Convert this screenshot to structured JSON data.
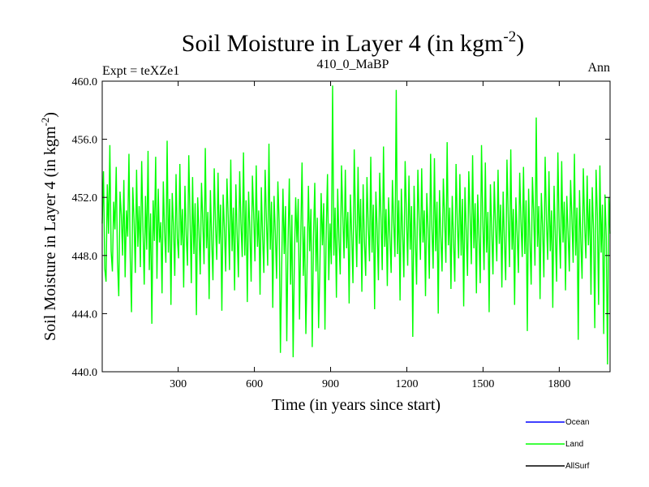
{
  "chart_data": {
    "type": "line",
    "title": "Soil Moisture in Layer 4 (in kgm",
    "title_sup": "-2",
    "title_end": ")",
    "subtitle_left": "Expt = teXZe1",
    "subtitle_center": "410_0_MaBP",
    "subtitle_right": "Ann",
    "xlabel": "Time (in years since start)",
    "ylabel": "Soil Moisture in Layer 4 (in kgm",
    "ylabel_sup": "-2",
    "ylabel_end": ")",
    "xlim": [
      1,
      2000
    ],
    "ylim": [
      440,
      460
    ],
    "xticks": [
      300,
      600,
      900,
      1200,
      1500,
      1800
    ],
    "xtick_labels": [
      "300",
      "600",
      "900",
      "1200",
      "1500",
      "1800"
    ],
    "yticks": [
      440,
      444,
      448,
      452,
      456,
      460
    ],
    "ytick_labels": [
      "440.0",
      "444.0",
      "448.0",
      "452.0",
      "456.0",
      "460.0"
    ],
    "legend": [
      {
        "name": "Ocean",
        "color": "#0000ff"
      },
      {
        "name": "Land",
        "color": "#00ff00"
      },
      {
        "name": "AllSurf",
        "color": "#000000"
      }
    ],
    "series": [
      {
        "name": "Land",
        "color": "#00ff00",
        "x_start": 1,
        "x_step": 5,
        "values": [
          450.2,
          453.8,
          447.1,
          446.2,
          452.9,
          449.5,
          455.6,
          448.3,
          446.9,
          451.7,
          449.8,
          454.1,
          447.6,
          445.2,
          452.4,
          450.8,
          448.0,
          453.2,
          446.5,
          451.1,
          449.3,
          455.0,
          447.9,
          444.1,
          452.7,
          450.5,
          446.8,
          453.9,
          448.6,
          451.4,
          447.2,
          454.5,
          449.9,
          446.0,
          452.1,
          448.4,
          455.2,
          447.0,
          450.9,
          443.3,
          451.8,
          449.0,
          454.8,
          446.4,
          452.6,
          448.9,
          450.3,
          445.4,
          453.1,
          449.6,
          447.5,
          455.9,
          448.2,
          451.9,
          444.6,
          452.3,
          450.0,
          446.6,
          453.6,
          449.2,
          447.8,
          454.3,
          448.7,
          451.2,
          445.8,
          452.8,
          449.4,
          447.3,
          454.9,
          450.6,
          446.1,
          453.4,
          448.1,
          451.6,
          443.9,
          452.0,
          449.7,
          446.7,
          453.0,
          450.4,
          447.4,
          455.4,
          448.5,
          451.0,
          445.0,
          452.5,
          449.1,
          446.3,
          454.0,
          450.1,
          447.7,
          453.7,
          448.8,
          451.5,
          444.2,
          452.2,
          449.9,
          446.9,
          453.3,
          450.7,
          447.0,
          454.6,
          448.3,
          451.3,
          445.6,
          452.9,
          449.5,
          446.5,
          453.8,
          450.2,
          447.9,
          455.1,
          448.0,
          451.8,
          444.8,
          452.4,
          449.8,
          446.2,
          453.5,
          450.9,
          447.6,
          454.2,
          448.6,
          451.1,
          445.3,
          452.7,
          449.3,
          446.8,
          453.9,
          450.5,
          447.3,
          455.7,
          448.4,
          451.7,
          444.4,
          452.1,
          449.6,
          446.4,
          453.1,
          450.3,
          441.3,
          447.2,
          452.6,
          448.1,
          451.4,
          442.1,
          449.0,
          453.3,
          446.0,
          450.8,
          441.0,
          447.8,
          452.0,
          448.9,
          451.9,
          443.6,
          449.4,
          454.4,
          446.6,
          450.0,
          442.6,
          447.5,
          452.8,
          448.3,
          451.2,
          441.7,
          449.2,
          453.0,
          446.9,
          450.6,
          443.0,
          447.1,
          452.3,
          448.7,
          451.6,
          442.9,
          449.7,
          453.6,
          446.3,
          450.2,
          447.4,
          459.7,
          448.0,
          451.3,
          445.1,
          452.6,
          449.1,
          446.7,
          454.2,
          450.8,
          447.8,
          453.9,
          448.5,
          451.0,
          444.7,
          452.2,
          449.5,
          446.1,
          455.3,
          450.4,
          447.2,
          454.1,
          448.8,
          451.9,
          445.5,
          452.9,
          449.0,
          446.6,
          453.4,
          450.1,
          447.6,
          454.8,
          448.2,
          451.5,
          444.3,
          452.4,
          449.8,
          446.3,
          453.7,
          450.7,
          447.0,
          455.5,
          448.6,
          451.2,
          445.9,
          452.0,
          449.3,
          446.8,
          453.2,
          450.3,
          447.9,
          459.4,
          448.1,
          451.8,
          444.9,
          452.6,
          449.6,
          446.5,
          454.5,
          450.9,
          447.3,
          453.5,
          448.4,
          451.4,
          442.4,
          452.8,
          449.2,
          446.0,
          453.9,
          450.5,
          447.7,
          454.0,
          448.9,
          451.1,
          445.2,
          452.3,
          449.9,
          446.4,
          455.0,
          450.0,
          447.1,
          454.7,
          448.3,
          451.7,
          444.0,
          452.5,
          449.4,
          446.9,
          453.3,
          450.6,
          447.5,
          455.8,
          448.7,
          451.3,
          445.7,
          452.1,
          449.1,
          446.2,
          454.3,
          450.2,
          447.8,
          453.6,
          448.0,
          451.9,
          444.5,
          452.7,
          449.7,
          446.6,
          453.8,
          450.8,
          447.4,
          454.9,
          448.5,
          451.6,
          445.4,
          452.2,
          449.3,
          446.1,
          455.6,
          450.4,
          447.0,
          454.4,
          448.2,
          451.0,
          444.1,
          452.9,
          449.8,
          446.7,
          453.1,
          450.1,
          447.6,
          453.9,
          448.8,
          451.5,
          445.8,
          452.4,
          449.0,
          446.3,
          454.6,
          450.7,
          447.2,
          455.3,
          448.4,
          451.2,
          444.6,
          452.0,
          449.5,
          446.8,
          453.7,
          450.3,
          447.9,
          454.1,
          448.1,
          451.8,
          442.8,
          452.6,
          449.2,
          446.0,
          453.4,
          450.9,
          447.3,
          457.5,
          448.6,
          451.4,
          445.0,
          452.3,
          449.9,
          446.5,
          454.8,
          450.5,
          447.7,
          453.8,
          448.3,
          451.1,
          444.4,
          452.8,
          449.4,
          446.2,
          455.1,
          450.0,
          447.1,
          454.5,
          448.9,
          451.7,
          445.6,
          452.1,
          449.6,
          446.9,
          453.2,
          450.6,
          447.5,
          455.0,
          448.0,
          451.3,
          442.2,
          452.5,
          449.1,
          446.4,
          454.0,
          450.2,
          447.8,
          453.5,
          448.7,
          451.9,
          445.3,
          452.7,
          449.8,
          443.0,
          453.9,
          450.8,
          444.6,
          454.2,
          448.2,
          451.5,
          442.6,
          452.2,
          449.3,
          440.5,
          452.0,
          449.5
        ]
      }
    ]
  }
}
